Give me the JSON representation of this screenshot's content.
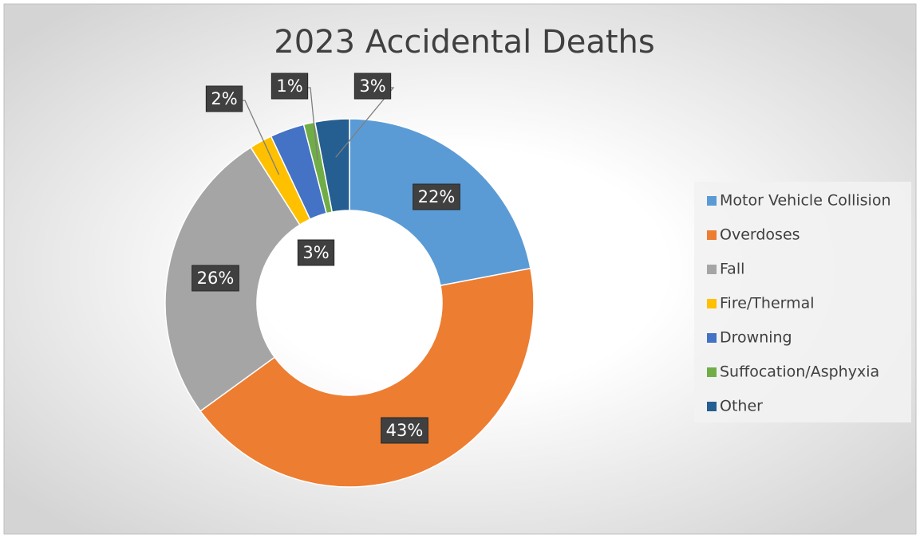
{
  "chart_data": {
    "type": "donut",
    "title": "2023 Accidental Deaths",
    "categories": [
      "Motor Vehicle Collision",
      "Overdoses",
      "Fall",
      "Fire/Thermal",
      "Drowning",
      "Suffocation/Asphyxia",
      "Other"
    ],
    "values": [
      22,
      43,
      26,
      2,
      3,
      1,
      3
    ],
    "value_labels": [
      "22%",
      "43%",
      "26%",
      "2%",
      "3%",
      "1%",
      "3%"
    ],
    "colors": [
      "#5b9bd5",
      "#ed7d31",
      "#a5a5a5",
      "#ffc000",
      "#4472c4",
      "#70ad47",
      "#255e91"
    ],
    "legend": "right"
  }
}
